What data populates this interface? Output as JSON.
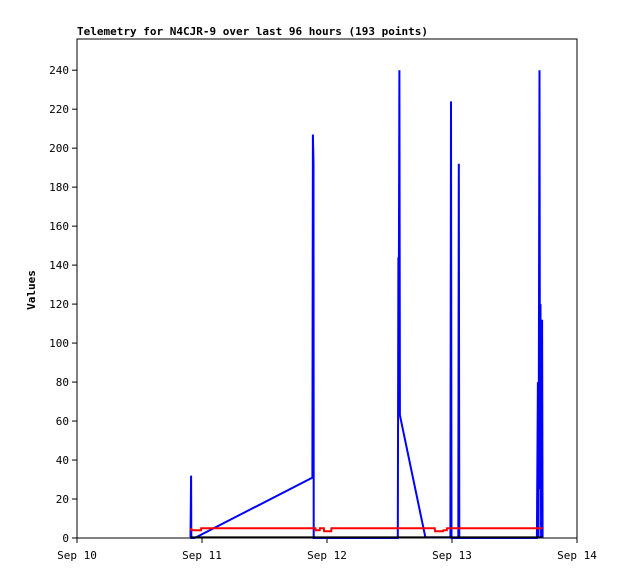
{
  "chart_data": {
    "type": "line",
    "title": "Telemetry for N4CJR-9 over last 96 hours (193 points)",
    "xlabel": "",
    "ylabel": "Values",
    "xlim": [
      0,
      96
    ],
    "ylim": [
      0,
      256
    ],
    "x_ticks": [
      {
        "value": 0,
        "label": "Sep 10"
      },
      {
        "value": 24,
        "label": "Sep 11"
      },
      {
        "value": 48,
        "label": "Sep 12"
      },
      {
        "value": 72,
        "label": "Sep 13"
      },
      {
        "value": 96,
        "label": "Sep 14"
      }
    ],
    "y_ticks": [
      0,
      20,
      40,
      60,
      80,
      100,
      120,
      140,
      160,
      180,
      200,
      220,
      240
    ],
    "grid": false,
    "series": [
      {
        "color": "#0000ff",
        "points": [
          [
            21.8,
            0.4
          ],
          [
            21.9,
            32
          ],
          [
            21.95,
            0
          ],
          [
            22.6,
            0
          ],
          [
            45.2,
            31
          ],
          [
            45.3,
            207
          ],
          [
            45.4,
            192
          ],
          [
            45.45,
            0
          ],
          [
            61.6,
            0
          ],
          [
            61.7,
            144
          ],
          [
            61.8,
            140
          ],
          [
            61.9,
            240
          ],
          [
            62.0,
            63
          ],
          [
            66.9,
            0.3
          ],
          [
            71.7,
            0.3
          ],
          [
            71.8,
            224
          ],
          [
            71.9,
            0
          ],
          [
            73.2,
            0
          ],
          [
            73.3,
            192
          ],
          [
            73.4,
            0
          ],
          [
            88.3,
            0
          ],
          [
            88.4,
            40
          ],
          [
            88.5,
            80
          ],
          [
            88.6,
            0
          ],
          [
            88.8,
            240
          ],
          [
            88.9,
            25
          ],
          [
            89.0,
            120
          ],
          [
            89.1,
            0
          ],
          [
            89.3,
            112
          ],
          [
            89.4,
            0
          ]
        ]
      },
      {
        "color": "#ff0000",
        "points": [
          [
            21.7,
            4.5
          ],
          [
            22.0,
            4.5
          ],
          [
            22.05,
            4.0
          ],
          [
            23.8,
            4.0
          ],
          [
            23.85,
            5.0
          ],
          [
            45.8,
            5.0
          ],
          [
            45.85,
            4.0
          ],
          [
            46.6,
            4.0
          ],
          [
            46.65,
            5.0
          ],
          [
            47.4,
            5.0
          ],
          [
            47.45,
            3.5
          ],
          [
            48.8,
            3.5
          ],
          [
            48.85,
            5.0
          ],
          [
            68.7,
            5.0
          ],
          [
            68.75,
            3.5
          ],
          [
            70.3,
            3.5
          ],
          [
            70.35,
            4.0
          ],
          [
            71.0,
            4.0
          ],
          [
            71.05,
            5.0
          ],
          [
            89.4,
            5.0
          ]
        ]
      },
      {
        "color": "#000000",
        "points": [
          [
            21.8,
            0.3
          ],
          [
            89.4,
            0.3
          ]
        ]
      }
    ]
  }
}
